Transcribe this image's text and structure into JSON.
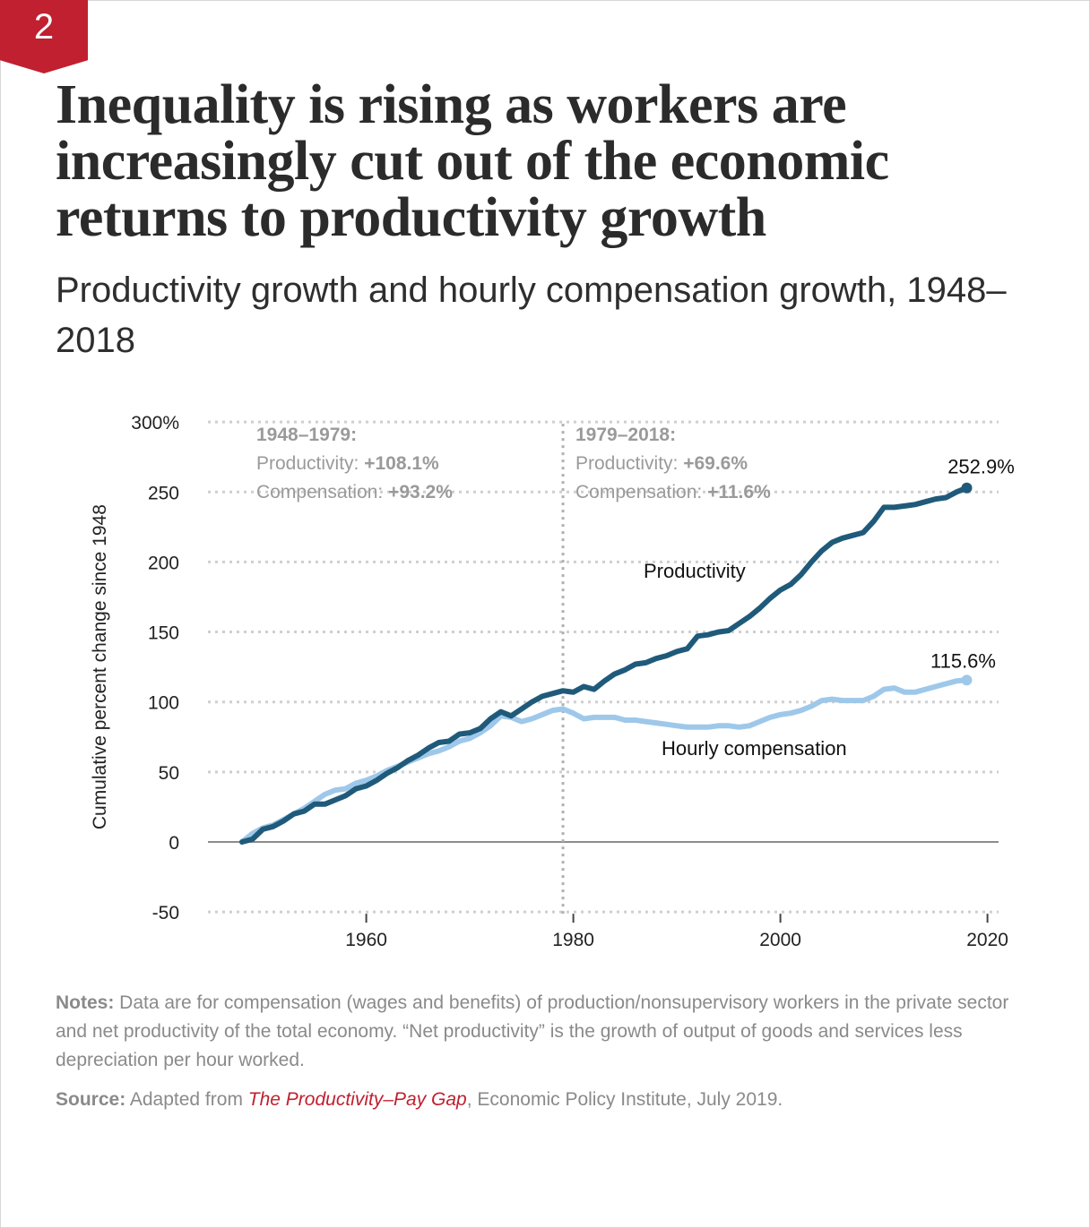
{
  "badge": {
    "number": "2"
  },
  "title": "Inequality is rising as workers are increasingly cut out of the economic returns to productivity growth",
  "subtitle": "Productivity growth and hourly compensation growth, 1948–2018",
  "colors": {
    "productivity": "#1f5a7a",
    "compensation": "#9ec8ea",
    "badge": "#c0202f",
    "grid": "#cfcfcf"
  },
  "chart_data": {
    "type": "line",
    "ylabel": "Cumulative percent change since 1948",
    "xlabel": "",
    "xlim": [
      1944,
      2022
    ],
    "ylim": [
      -50,
      300
    ],
    "xticks": [
      "1960",
      "1980",
      "2000",
      "2020"
    ],
    "xtick_values": [
      1960,
      1980,
      2000,
      2020
    ],
    "yticks": [
      "300%",
      "250",
      "200",
      "150",
      "100",
      "50",
      "0",
      "-50"
    ],
    "ytick_values": [
      300,
      250,
      200,
      150,
      100,
      50,
      0,
      -50
    ],
    "divider_year": 1979,
    "annotations": {
      "period1": {
        "heading": "1948–1979:",
        "prod_label": "Productivity: ",
        "prod_value": "+108.1%",
        "comp_label": "Compensation: ",
        "comp_value": "+93.2%"
      },
      "period2": {
        "heading": "1979–2018:",
        "prod_label": "Productivity: ",
        "prod_value": "+69.6%",
        "comp_label": "Compensation: ",
        "comp_value": "+11.6%"
      }
    },
    "series": [
      {
        "name": "Productivity",
        "end_label": "252.9%",
        "x": [
          1948,
          1949,
          1950,
          1951,
          1952,
          1953,
          1954,
          1955,
          1956,
          1957,
          1958,
          1959,
          1960,
          1961,
          1962,
          1963,
          1964,
          1965,
          1966,
          1967,
          1968,
          1969,
          1970,
          1971,
          1972,
          1973,
          1974,
          1975,
          1976,
          1977,
          1978,
          1979,
          1980,
          1981,
          1982,
          1983,
          1984,
          1985,
          1986,
          1987,
          1988,
          1989,
          1990,
          1991,
          1992,
          1993,
          1994,
          1995,
          1996,
          1997,
          1998,
          1999,
          2000,
          2001,
          2002,
          2003,
          2004,
          2005,
          2006,
          2007,
          2008,
          2009,
          2010,
          2011,
          2012,
          2013,
          2014,
          2015,
          2016,
          2017,
          2018
        ],
        "values": [
          0,
          2,
          9,
          11,
          15,
          20,
          22,
          27,
          27,
          30,
          33,
          38,
          40,
          44,
          49,
          53,
          58,
          62,
          67,
          71,
          72,
          77,
          78,
          81,
          88,
          93,
          90,
          95,
          100,
          104,
          106,
          108,
          107,
          111,
          109,
          115,
          120,
          123,
          127,
          128,
          131,
          133,
          136,
          138,
          147,
          148,
          150,
          151,
          156,
          161,
          167,
          174,
          180,
          184,
          191,
          200,
          208,
          214,
          217,
          219,
          221,
          229,
          239,
          239,
          240,
          241,
          243,
          245,
          246,
          250,
          252.9
        ]
      },
      {
        "name": "Hourly compensation",
        "end_label": "115.6%",
        "x": [
          1948,
          1949,
          1950,
          1951,
          1952,
          1953,
          1954,
          1955,
          1956,
          1957,
          1958,
          1959,
          1960,
          1961,
          1962,
          1963,
          1964,
          1965,
          1966,
          1967,
          1968,
          1969,
          1970,
          1971,
          1972,
          1973,
          1974,
          1975,
          1976,
          1977,
          1978,
          1979,
          1980,
          1981,
          1982,
          1983,
          1984,
          1985,
          1986,
          1987,
          1988,
          1989,
          1990,
          1991,
          1992,
          1993,
          1994,
          1995,
          1996,
          1997,
          1998,
          1999,
          2000,
          2001,
          2002,
          2003,
          2004,
          2005,
          2006,
          2007,
          2008,
          2009,
          2010,
          2011,
          2012,
          2013,
          2014,
          2015,
          2016,
          2017,
          2018
        ],
        "values": [
          0,
          6,
          10,
          12,
          16,
          20,
          24,
          29,
          34,
          37,
          38,
          42,
          44,
          47,
          51,
          54,
          57,
          60,
          63,
          65,
          68,
          72,
          74,
          78,
          83,
          90,
          89,
          86,
          88,
          91,
          94,
          95,
          92,
          88,
          89,
          89,
          89,
          87,
          87,
          86,
          85,
          84,
          83,
          82,
          82,
          82,
          83,
          83,
          82,
          83,
          86,
          89,
          91,
          92,
          94,
          97,
          101,
          102,
          101,
          101,
          101,
          104,
          109,
          110,
          107,
          107,
          109,
          111,
          113,
          115,
          115.6
        ]
      }
    ]
  },
  "notes": {
    "label": "Notes:",
    "text": " Data are for compensation (wages and benefits) of production/nonsupervisory workers in the private sector and net productivity of the total economy. “Net productivity” is the growth of output of goods and services less depreciation per hour worked."
  },
  "source": {
    "label": "Source:",
    "prefix": " Adapted from ",
    "link_text": "The Productivity–Pay Gap",
    "suffix": ", Economic Policy Institute, July 2019."
  }
}
